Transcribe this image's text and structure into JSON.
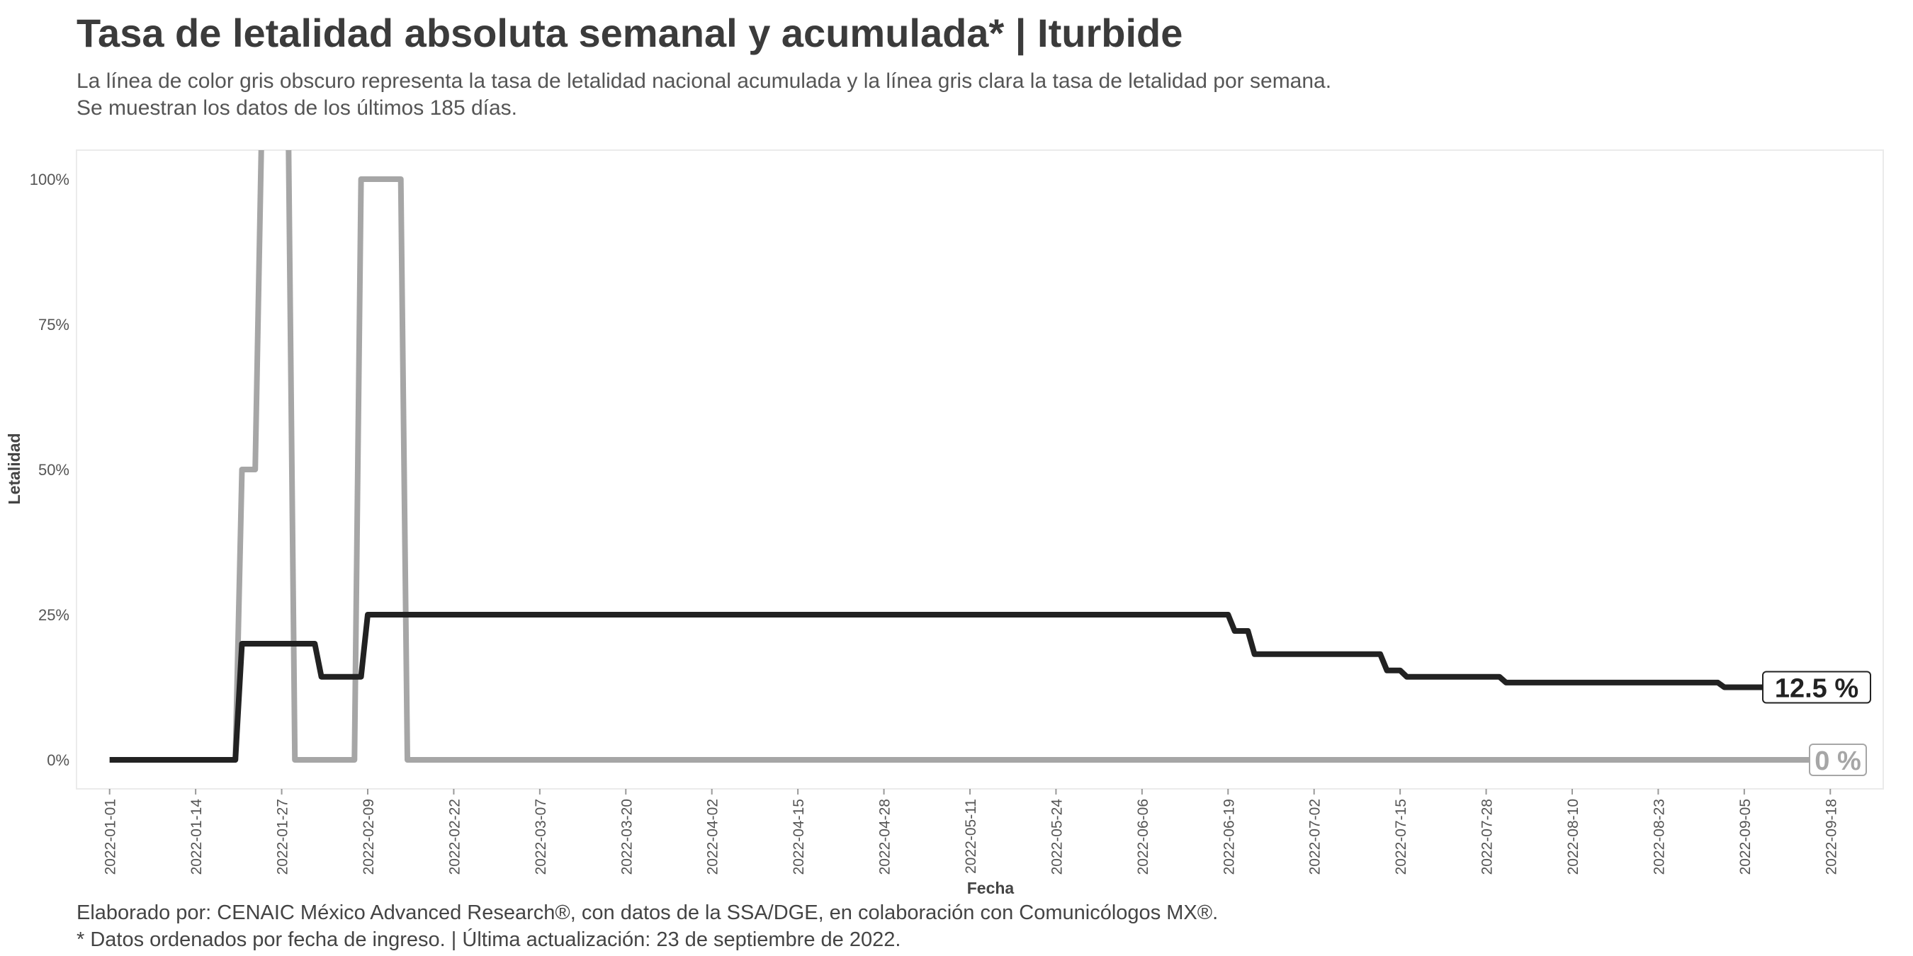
{
  "chart_data": {
    "type": "line",
    "title": "Tasa de letalidad absoluta semanal y acumulada* | Iturbide",
    "subtitle": [
      "La línea de color gris obscuro representa la tasa de letalidad nacional acumulada y la línea gris clara la tasa de letalidad por semana.",
      "Se muestran los datos de los últimos 185 días."
    ],
    "xlabel": "Fecha",
    "ylabel": "Letalidad",
    "x_ticks": [
      "2022-01-01",
      "2022-01-14",
      "2022-01-27",
      "2022-02-09",
      "2022-02-22",
      "2022-03-07",
      "2022-03-20",
      "2022-04-02",
      "2022-04-15",
      "2022-04-28",
      "2022-05-11",
      "2022-05-24",
      "2022-06-06",
      "2022-06-19",
      "2022-07-02",
      "2022-07-15",
      "2022-07-28",
      "2022-08-10",
      "2022-08-23",
      "2022-09-05",
      "2022-09-18"
    ],
    "y_ticks": [
      {
        "value": 0,
        "label": "0%"
      },
      {
        "value": 25,
        "label": "25%"
      },
      {
        "value": 50,
        "label": "50%"
      },
      {
        "value": 75,
        "label": "75%"
      },
      {
        "value": 100,
        "label": "100%"
      }
    ],
    "xlim": [
      "2021-12-27",
      "2022-09-26"
    ],
    "ylim": [
      -5,
      105
    ],
    "grid": false,
    "series": [
      {
        "name": "acumulada",
        "color": "#222222",
        "points": [
          [
            "2022-01-01",
            0
          ],
          [
            "2022-01-20",
            0
          ],
          [
            "2022-01-21",
            20
          ],
          [
            "2022-02-01",
            20
          ],
          [
            "2022-02-02",
            14.3
          ],
          [
            "2022-02-08",
            14.3
          ],
          [
            "2022-02-09",
            25
          ],
          [
            "2022-06-19",
            25
          ],
          [
            "2022-06-20",
            22.2
          ],
          [
            "2022-06-22",
            22.2
          ],
          [
            "2022-06-23",
            18.2
          ],
          [
            "2022-07-12",
            18.2
          ],
          [
            "2022-07-13",
            15.4
          ],
          [
            "2022-07-15",
            15.4
          ],
          [
            "2022-07-16",
            14.3
          ],
          [
            "2022-07-30",
            14.3
          ],
          [
            "2022-07-31",
            13.3
          ],
          [
            "2022-09-01",
            13.3
          ],
          [
            "2022-09-02",
            12.5
          ],
          [
            "2022-09-22",
            12.5
          ]
        ],
        "end_label": "12.5 %"
      },
      {
        "name": "semanal",
        "color": "#a6a6a6",
        "points": [
          [
            "2022-01-01",
            0
          ],
          [
            "2022-01-20",
            0
          ],
          [
            "2022-01-21",
            50
          ],
          [
            "2022-01-23",
            50
          ],
          [
            "2022-01-24",
            110
          ],
          [
            "2022-01-28",
            110
          ],
          [
            "2022-01-29",
            0
          ],
          [
            "2022-02-07",
            0
          ],
          [
            "2022-02-08",
            100
          ],
          [
            "2022-02-14",
            100
          ],
          [
            "2022-02-15",
            0
          ],
          [
            "2022-09-22",
            0
          ]
        ],
        "end_label": "0 %"
      }
    ]
  },
  "caption": [
    "Elaborado por: CENAIC México Advanced Research®, con datos de la SSA/DGE, en colaboración con Comunicólogos MX®.",
    "* Datos ordenados por fecha de ingreso. | Última actualización: 23 de septiembre de 2022."
  ]
}
